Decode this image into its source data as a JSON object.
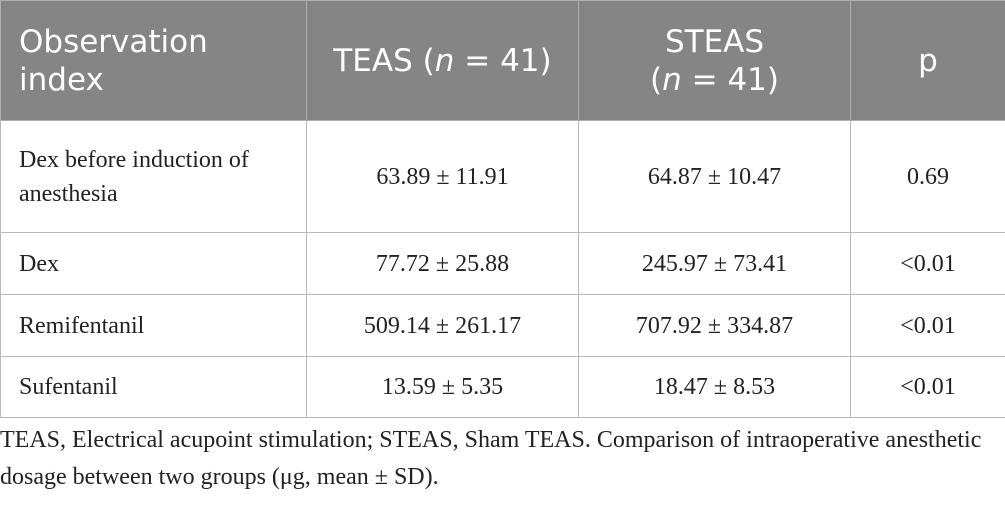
{
  "table": {
    "headers": {
      "col1": "Observation index",
      "col2_pre": "TEAS (",
      "col2_n": "n",
      "col2_post": " = 41)",
      "col3_pre": "STEAS",
      "col3_n": "n",
      "col3_post": " = 41)",
      "col4": "p"
    },
    "rows": [
      {
        "label": "Dex before induction of anesthesia",
        "teas": "63.89 ± 11.91",
        "steas": "64.87 ± 10.47",
        "p": "0.69"
      },
      {
        "label": "Dex",
        "teas": "77.72 ± 25.88",
        "steas": "245.97 ± 73.41",
        "p": "<0.01"
      },
      {
        "label": "Remifentanil",
        "teas": "509.14 ± 261.17",
        "steas": "707.92 ± 334.87",
        "p": "<0.01"
      },
      {
        "label": "Sufentanil",
        "teas": "13.59 ± 5.35",
        "steas": "18.47 ± 8.53",
        "p": "<0.01"
      }
    ]
  },
  "caption": "TEAS, Electrical acupoint stimulation; STEAS, Sham TEAS. Comparison of intraoperative anesthetic dosage between two groups (μg, mean ± SD)."
}
